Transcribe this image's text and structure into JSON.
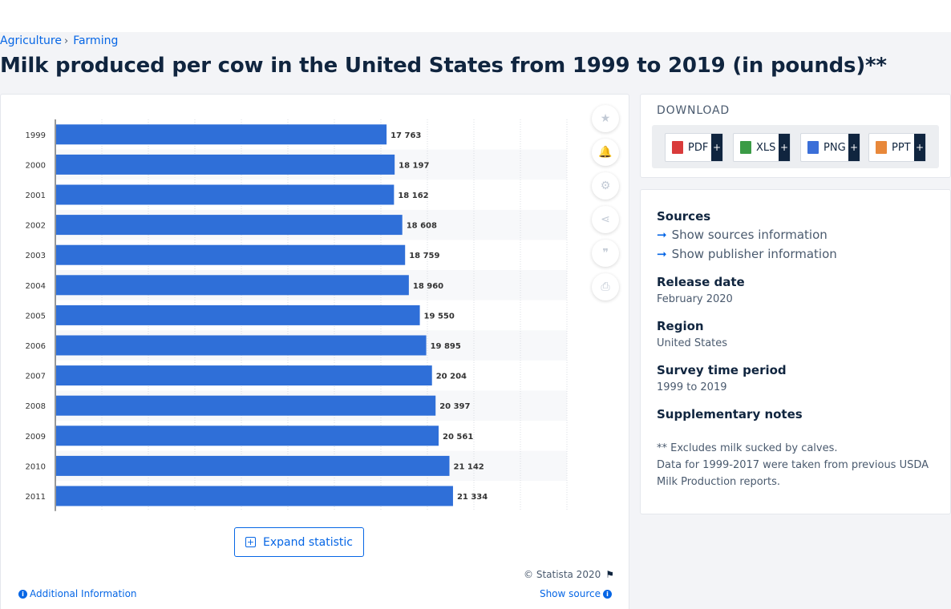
{
  "breadcrumb": {
    "items": [
      "Agriculture",
      "Farming"
    ],
    "separator": "›"
  },
  "page_title": "Milk produced per cow in the United States from 1999 to 2019 (in pounds)**",
  "chart_data": {
    "type": "bar",
    "orientation": "horizontal",
    "title": "",
    "xlabel": "",
    "ylabel": "",
    "categories": [
      "1999",
      "2000",
      "2001",
      "2002",
      "2003",
      "2004",
      "2005",
      "2006",
      "2007",
      "2008",
      "2009",
      "2010",
      "2011"
    ],
    "values": [
      17763,
      18197,
      18162,
      18608,
      18759,
      18960,
      19550,
      19895,
      20204,
      20397,
      20561,
      21142,
      21334
    ],
    "value_labels": [
      "17 763",
      "18 197",
      "18 162",
      "18 608",
      "18 759",
      "18 960",
      "19 550",
      "19 895",
      "20 204",
      "20 397",
      "20 561",
      "21 142",
      "21 334"
    ],
    "xlim": [
      0,
      27500
    ],
    "grid": true,
    "legend": "none",
    "bar_color": "#2f6fd8"
  },
  "tools": [
    {
      "name": "star-icon",
      "glyph": "★"
    },
    {
      "name": "bell-icon",
      "glyph": "🔔"
    },
    {
      "name": "gear-icon",
      "glyph": "⚙"
    },
    {
      "name": "share-icon",
      "glyph": "⋖"
    },
    {
      "name": "quote-icon",
      "glyph": "❞"
    },
    {
      "name": "print-icon",
      "glyph": "⎙"
    }
  ],
  "expand": {
    "label": "Expand statistic",
    "plus": "+"
  },
  "footer": {
    "copyright": "© Statista 2020",
    "additional_info": "Additional Information",
    "show_source": "Show source",
    "info_glyph": "i",
    "flag_glyph": "⚑"
  },
  "download": {
    "title": "DOWNLOAD",
    "more_glyph": "+",
    "buttons": [
      {
        "label": "PDF",
        "color": "#d93b3b"
      },
      {
        "label": "XLS",
        "color": "#3b9b46"
      },
      {
        "label": "PNG",
        "color": "#3b6fd8"
      },
      {
        "label": "PPT",
        "color": "#e8883a"
      }
    ]
  },
  "details": {
    "sources_label": "Sources",
    "show_sources": "Show sources information",
    "show_publisher": "Show publisher information",
    "arrow_glyph": "➞",
    "release_date_label": "Release date",
    "release_date": "February 2020",
    "region_label": "Region",
    "region": "United States",
    "survey_label": "Survey time period",
    "survey": "1999 to 2019",
    "supplementary_label": "Supplementary notes",
    "note_1": "** Excludes milk sucked by calves.",
    "note_2": "Data for 1999-2017 were taken from previous USDA Milk Production reports."
  }
}
